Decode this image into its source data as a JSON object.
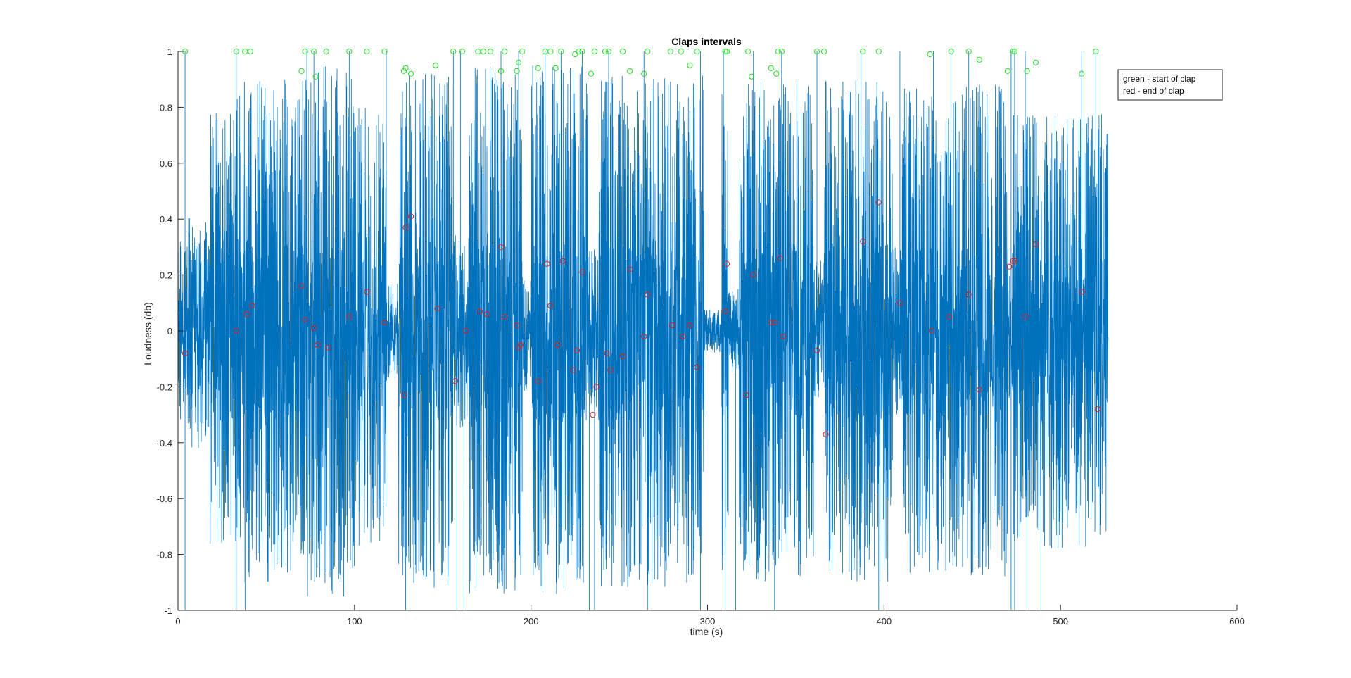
{
  "chart_data": {
    "type": "line",
    "title": "Claps intervals",
    "xlabel": "time (s)",
    "ylabel": "Loudness (db)",
    "xlim": [
      0,
      600
    ],
    "ylim": [
      -1,
      1
    ],
    "x_ticks": [
      0,
      100,
      200,
      300,
      400,
      500,
      600
    ],
    "y_ticks": [
      -1,
      -0.8,
      -0.6,
      -0.4,
      -0.2,
      0,
      0.2,
      0.4,
      0.6,
      0.8,
      1
    ],
    "grid": false,
    "legend": {
      "placement": "top-right",
      "entries": [
        "green - start of clap",
        "red - end of clap"
      ]
    },
    "colors": {
      "signal": "#0072BD",
      "start_marker": "#22DD22",
      "end_marker": "#DD2222",
      "axis": "#262626"
    },
    "series": [
      {
        "segments": [
          {
            "t0": 0,
            "t1": 5,
            "amp": 0.32
          },
          {
            "t0": 5,
            "t1": 18,
            "amp": 0.42
          },
          {
            "t0": 18,
            "t1": 33,
            "amp": 0.78
          },
          {
            "t0": 33,
            "t1": 68,
            "amp": 0.9
          },
          {
            "t0": 68,
            "t1": 100,
            "amp": 0.95
          },
          {
            "t0": 100,
            "t1": 118,
            "amp": 0.8
          },
          {
            "t0": 118,
            "t1": 125,
            "amp": 0.18
          },
          {
            "t0": 125,
            "t1": 156,
            "amp": 0.92
          },
          {
            "t0": 156,
            "t1": 165,
            "amp": 0.35
          },
          {
            "t0": 165,
            "t1": 195,
            "amp": 0.95
          },
          {
            "t0": 195,
            "t1": 200,
            "amp": 0.22
          },
          {
            "t0": 200,
            "t1": 232,
            "amp": 0.95
          },
          {
            "t0": 232,
            "t1": 238,
            "amp": 0.3
          },
          {
            "t0": 238,
            "t1": 298,
            "amp": 0.92
          },
          {
            "t0": 298,
            "t1": 308,
            "amp": 0.08
          },
          {
            "t0": 308,
            "t1": 312,
            "amp": 0.9
          },
          {
            "t0": 312,
            "t1": 318,
            "amp": 0.15
          },
          {
            "t0": 318,
            "t1": 360,
            "amp": 0.9
          },
          {
            "t0": 360,
            "t1": 366,
            "amp": 0.25
          },
          {
            "t0": 366,
            "t1": 405,
            "amp": 0.9
          },
          {
            "t0": 405,
            "t1": 410,
            "amp": 0.3
          },
          {
            "t0": 410,
            "t1": 470,
            "amp": 0.88
          },
          {
            "t0": 470,
            "t1": 473,
            "amp": 0.3
          },
          {
            "t0": 473,
            "t1": 527,
            "amp": 0.78
          }
        ],
        "spikes_to_min": [
          4,
          33,
          38,
          129,
          158,
          162,
          233,
          236,
          266,
          296,
          310,
          316,
          338,
          397,
          472,
          474,
          481,
          489
        ],
        "spikes_to_max": [
          4,
          33,
          73,
          77,
          97,
          118,
          156,
          160,
          183,
          193,
          208,
          217,
          229,
          244,
          264,
          296,
          309,
          326,
          342,
          362,
          387,
          409,
          428,
          438,
          448,
          472,
          474,
          480,
          512,
          520
        ],
        "t_end": 527
      },
      {
        "name": "green - start of clap",
        "points": [
          [
            4,
            1
          ],
          [
            33,
            1
          ],
          [
            38,
            1
          ],
          [
            41,
            1
          ],
          [
            70,
            0.93
          ],
          [
            72,
            1
          ],
          [
            77,
            1
          ],
          [
            78,
            0.91
          ],
          [
            84,
            1
          ],
          [
            97,
            1
          ],
          [
            107,
            1
          ],
          [
            117,
            1
          ],
          [
            128,
            0.93
          ],
          [
            129,
            0.94
          ],
          [
            132,
            0.92
          ],
          [
            146,
            0.95
          ],
          [
            156,
            1
          ],
          [
            161,
            1
          ],
          [
            170,
            1
          ],
          [
            173,
            1
          ],
          [
            177,
            1
          ],
          [
            183,
            0.93
          ],
          [
            185,
            1
          ],
          [
            192,
            0.93
          ],
          [
            193,
            0.96
          ],
          [
            195,
            1
          ],
          [
            204,
            0.94
          ],
          [
            208,
            1
          ],
          [
            211,
            1
          ],
          [
            214,
            0.94
          ],
          [
            217,
            1
          ],
          [
            225,
            0.99
          ],
          [
            227,
            1
          ],
          [
            229,
            1
          ],
          [
            234,
            0.92
          ],
          [
            236,
            1
          ],
          [
            242,
            1
          ],
          [
            244,
            1
          ],
          [
            252,
            1
          ],
          [
            256,
            0.93
          ],
          [
            264,
            0.92
          ],
          [
            266,
            1
          ],
          [
            279,
            1
          ],
          [
            285,
            1
          ],
          [
            290,
            0.95
          ],
          [
            294,
            1
          ],
          [
            310,
            1
          ],
          [
            311,
            1
          ],
          [
            323,
            1
          ],
          [
            325,
            0.91
          ],
          [
            336,
            0.94
          ],
          [
            339,
            0.92
          ],
          [
            340,
            1
          ],
          [
            342,
            1
          ],
          [
            362,
            1
          ],
          [
            366,
            1
          ],
          [
            388,
            1
          ],
          [
            397,
            1
          ],
          [
            426,
            0.99
          ],
          [
            438,
            1
          ],
          [
            448,
            1
          ],
          [
            454,
            0.97
          ],
          [
            470,
            0.93
          ],
          [
            473,
            1
          ],
          [
            474,
            1
          ],
          [
            481,
            0.93
          ],
          [
            486,
            0.96
          ],
          [
            512,
            0.92
          ],
          [
            520,
            1
          ]
        ]
      },
      {
        "name": "red - end of clap",
        "points": [
          [
            4,
            -0.08
          ],
          [
            33,
            0
          ],
          [
            39,
            0.06
          ],
          [
            42,
            0.09
          ],
          [
            70,
            0.16
          ],
          [
            72,
            0.04
          ],
          [
            77,
            0.01
          ],
          [
            79,
            -0.05
          ],
          [
            85,
            -0.06
          ],
          [
            97,
            0.05
          ],
          [
            107,
            0.14
          ],
          [
            117,
            0.03
          ],
          [
            128,
            -0.23
          ],
          [
            129,
            0.37
          ],
          [
            132,
            0.41
          ],
          [
            147,
            0.08
          ],
          [
            157,
            -0.18
          ],
          [
            163,
            0
          ],
          [
            171,
            0.07
          ],
          [
            175,
            0.06
          ],
          [
            183,
            0.3
          ],
          [
            185,
            0.05
          ],
          [
            192,
            0.02
          ],
          [
            193,
            -0.06
          ],
          [
            194,
            -0.05
          ],
          [
            204,
            -0.18
          ],
          [
            209,
            0.24
          ],
          [
            211,
            0.09
          ],
          [
            215,
            -0.05
          ],
          [
            218,
            0.25
          ],
          [
            224,
            -0.14
          ],
          [
            226,
            -0.07
          ],
          [
            229,
            0.21
          ],
          [
            235,
            -0.3
          ],
          [
            237,
            -0.2
          ],
          [
            243,
            -0.08
          ],
          [
            245,
            -0.14
          ],
          [
            252,
            -0.09
          ],
          [
            256,
            0.22
          ],
          [
            264,
            -0.02
          ],
          [
            266,
            0.13
          ],
          [
            280,
            0.02
          ],
          [
            286,
            -0.02
          ],
          [
            290,
            0.02
          ],
          [
            294,
            -0.13
          ],
          [
            310,
            0.07
          ],
          [
            311,
            0.24
          ],
          [
            322,
            -0.23
          ],
          [
            326,
            0.2
          ],
          [
            336,
            0.03
          ],
          [
            338,
            0.03
          ],
          [
            341,
            0.26
          ],
          [
            343,
            -0.02
          ],
          [
            362,
            -0.07
          ],
          [
            367,
            -0.37
          ],
          [
            388,
            0.32
          ],
          [
            397,
            0.46
          ],
          [
            409,
            0.1
          ],
          [
            427,
            0
          ],
          [
            437,
            0.05
          ],
          [
            448,
            0.13
          ],
          [
            454,
            -0.21
          ],
          [
            471,
            0.23
          ],
          [
            473,
            0.25
          ],
          [
            474,
            0.25
          ],
          [
            480,
            0.05
          ],
          [
            486,
            0.31
          ],
          [
            512,
            0.14
          ],
          [
            521,
            -0.28
          ]
        ]
      }
    ]
  }
}
